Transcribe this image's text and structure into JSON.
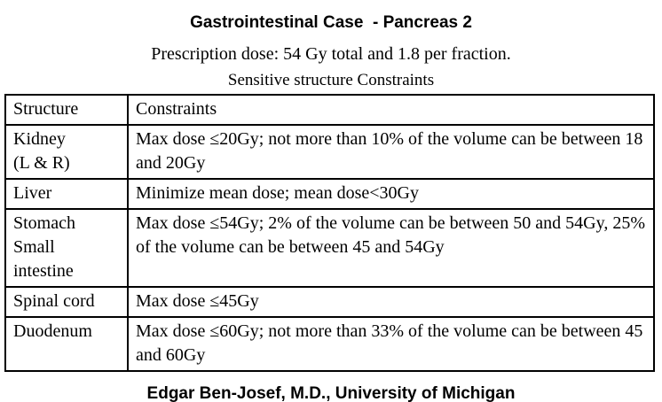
{
  "page": {
    "title": "Gastrointestinal Case  - Pancreas 2",
    "subtitle": "Prescription dose: 54 Gy total and 1.8 per fraction.",
    "table_caption": "Sensitive structure Constraints",
    "footer": "Edgar Ben-Josef, M.D., University of Michigan"
  },
  "table": {
    "headers": [
      "Structure",
      "Constraints"
    ],
    "rows": [
      {
        "structure": "Kidney\n(L & R)",
        "constraint": "Max dose ≤20Gy; not more than 10% of the volume can be between 18 and 20Gy"
      },
      {
        "structure": "Liver",
        "constraint": "Minimize mean dose; mean dose<30Gy"
      },
      {
        "structure": "Stomach\nSmall\nintestine",
        "constraint": "Max dose ≤54Gy; 2% of the volume can be between 50 and 54Gy, 25% of the volume can be between 45 and 54Gy"
      },
      {
        "structure": "Spinal cord",
        "constraint": "Max dose ≤45Gy"
      },
      {
        "structure": "Duodenum",
        "constraint": "Max dose ≤60Gy; not more than 33% of the volume can be between 45 and 60Gy"
      }
    ]
  }
}
